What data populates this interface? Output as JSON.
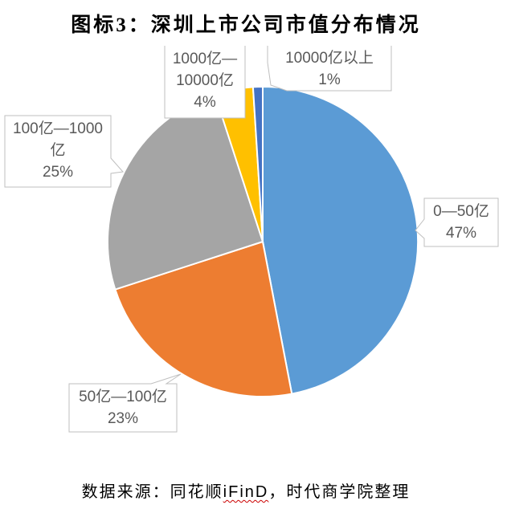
{
  "title": "图标3：深圳上市公司市值分布情况",
  "source": {
    "prefix": "数据来源：同花顺",
    "highlight": "iFinD",
    "suffix": "，时代商学院整理"
  },
  "chart_data": {
    "type": "pie",
    "title": "图标3：深圳上市公司市值分布情况",
    "categories": [
      "0—50亿",
      "50亿—100亿",
      "100亿—1000亿",
      "1000亿—10000亿",
      "10000亿以上"
    ],
    "values": [
      47,
      23,
      25,
      4,
      1
    ],
    "unit": "%",
    "colors": [
      "#5B9BD5",
      "#ED7D31",
      "#A5A5A5",
      "#FFC000",
      "#4472C4"
    ],
    "start_angle_deg": 0,
    "direction": "clockwise",
    "legend": "none",
    "label_style": "callout-boxes",
    "labels": [
      {
        "name": "0—50亿",
        "value": "47%"
      },
      {
        "name": "50亿—100亿",
        "value": "23%"
      },
      {
        "name": "100亿—1000亿",
        "value": "25%"
      },
      {
        "name": "1000亿—10000亿",
        "value": "4%"
      },
      {
        "name": "10000亿以上",
        "value": "1%"
      }
    ],
    "source_note": "数据来源：同花顺iFinD，时代商学院整理"
  }
}
